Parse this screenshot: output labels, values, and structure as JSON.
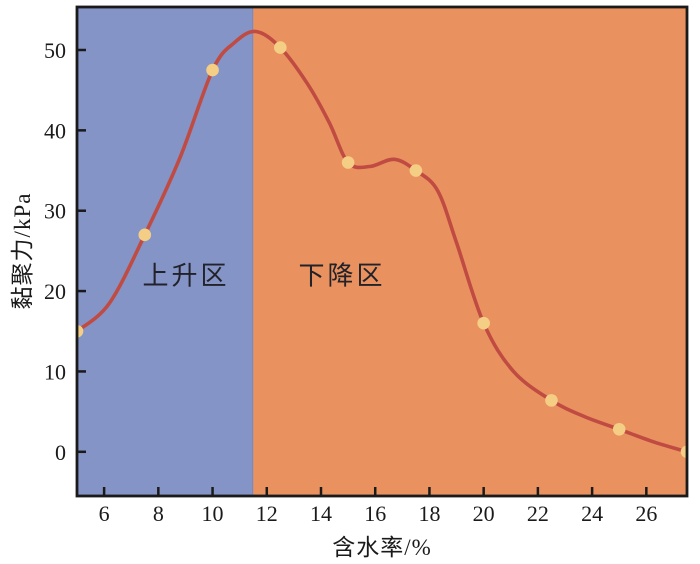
{
  "figure": {
    "background_color": "#ffffff",
    "axis_color": "#1a1a1a",
    "zones": [
      {
        "label": "上升区",
        "x_start": 5,
        "x_end": 11.5,
        "color": "#8494C6",
        "edge_color": "#7787BD"
      },
      {
        "label": "下降区",
        "x_start": 11.5,
        "x_end": 27.5,
        "color": "#E9925F"
      }
    ]
  },
  "chart_data": {
    "type": "line",
    "title": "",
    "xlabel": "含水率/%",
    "ylabel": "黏聚力/kPa",
    "series": [
      {
        "name": "黏聚力",
        "x": [
          5,
          7.5,
          10,
          12.5,
          15,
          17.5,
          20,
          22.5,
          25,
          27.5
        ],
        "values": [
          15,
          27,
          47.5,
          50.3,
          36,
          35,
          16,
          6.4,
          2.8,
          0
        ]
      }
    ],
    "smooth_curve_points": [
      [
        5,
        15
      ],
      [
        6.2,
        18.5
      ],
      [
        7.5,
        27
      ],
      [
        8.8,
        36.6
      ],
      [
        10,
        47.5
      ],
      [
        10.8,
        50.9
      ],
      [
        11.6,
        52.3
      ],
      [
        12.5,
        50.3
      ],
      [
        13.5,
        45.8
      ],
      [
        14.3,
        41
      ],
      [
        15,
        36
      ],
      [
        15.8,
        35.5
      ],
      [
        16.7,
        36.4
      ],
      [
        17.5,
        35
      ],
      [
        18.3,
        32.5
      ],
      [
        19,
        26
      ],
      [
        20,
        16
      ],
      [
        21.1,
        10
      ],
      [
        22.5,
        6.4
      ],
      [
        23.7,
        4.4
      ],
      [
        25,
        2.8
      ],
      [
        26.3,
        1.2
      ],
      [
        27.5,
        0
      ]
    ],
    "xlim": [
      5,
      27.5
    ],
    "ylim": [
      -5.5,
      55.35
    ],
    "x_ticks": [
      6,
      8,
      10,
      12,
      14,
      16,
      18,
      20,
      22,
      24,
      26
    ],
    "y_ticks": [
      0,
      10,
      20,
      30,
      40,
      50
    ],
    "grid": false,
    "legend": "none",
    "line_color": "#C04B42",
    "marker_color": "#F5CE85"
  }
}
